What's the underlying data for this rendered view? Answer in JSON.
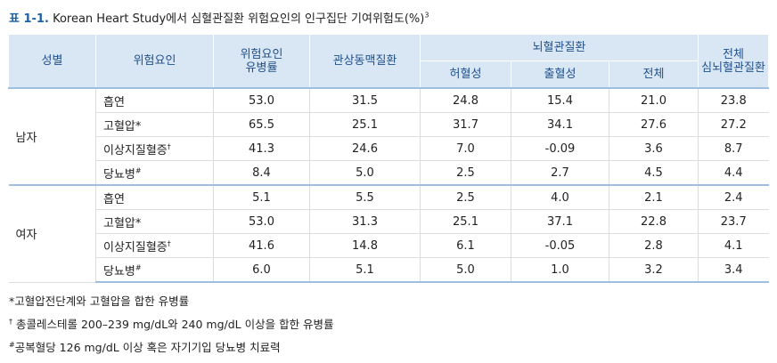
{
  "title": {
    "number": "표 1-1.",
    "text": "Korean Heart Study에서 심혈관질환 위험요인의 인구집단 기여위험도(%)",
    "sup": "3"
  },
  "header": {
    "sex": "성별",
    "factor": "위험요인",
    "prevalence_line1": "위험요인",
    "prevalence_line2": "유병률",
    "chd": "관상동맥질환",
    "stroke": "뇌혈관질환",
    "ischemic": "허혈성",
    "hemorrhagic": "출혈성",
    "stroke_total": "전체",
    "total_line1": "전체",
    "total_line2": "심뇌혈관질환"
  },
  "groups": [
    {
      "sex": "남자",
      "rows": [
        {
          "factor": "흡연",
          "mark": "",
          "prevalence": "53.0",
          "chd": "31.5",
          "ischemic": "24.8",
          "hemorrhagic": "15.4",
          "stroke_total": "21.0",
          "total": "23.8"
        },
        {
          "factor": "고혈압*",
          "mark": "",
          "prevalence": "65.5",
          "chd": "25.1",
          "ischemic": "31.7",
          "hemorrhagic": "34.1",
          "stroke_total": "27.6",
          "total": "27.2"
        },
        {
          "factor": "이상지질혈증",
          "mark": "†",
          "prevalence": "41.3",
          "chd": "24.6",
          "ischemic": "7.0",
          "hemorrhagic": "-0.09",
          "stroke_total": "3.6",
          "total": "8.7"
        },
        {
          "factor": "당뇨병",
          "mark": "#",
          "prevalence": "8.4",
          "chd": "5.0",
          "ischemic": "2.5",
          "hemorrhagic": "2.7",
          "stroke_total": "4.5",
          "total": "4.4"
        }
      ]
    },
    {
      "sex": "여자",
      "rows": [
        {
          "factor": "흡연",
          "mark": "",
          "prevalence": "5.1",
          "chd": "5.5",
          "ischemic": "2.5",
          "hemorrhagic": "4.0",
          "stroke_total": "2.1",
          "total": "2.4"
        },
        {
          "factor": "고혈압*",
          "mark": "",
          "prevalence": "53.0",
          "chd": "31.3",
          "ischemic": "25.1",
          "hemorrhagic": "37.1",
          "stroke_total": "22.8",
          "total": "23.7"
        },
        {
          "factor": "이상지질혈증",
          "mark": "†",
          "prevalence": "41.6",
          "chd": "14.8",
          "ischemic": "6.1",
          "hemorrhagic": "-0.05",
          "stroke_total": "2.8",
          "total": "4.1"
        },
        {
          "factor": "당뇨병",
          "mark": "#",
          "prevalence": "6.0",
          "chd": "5.1",
          "ischemic": "5.0",
          "hemorrhagic": "1.0",
          "stroke_total": "3.2",
          "total": "3.4"
        }
      ]
    }
  ],
  "notes": [
    {
      "mark": "",
      "text": "*고혈압전단계와 고혈압을 합한 유병률"
    },
    {
      "mark": "†",
      "text": " 총콜레스테롤 200–239 mg/dL와 240 mg/dL 이상을 합한 유병률"
    },
    {
      "mark": "#",
      "text": "공복혈당 126 mg/dL 이상 혹은 자기기입 당뇨병 치료력"
    }
  ]
}
